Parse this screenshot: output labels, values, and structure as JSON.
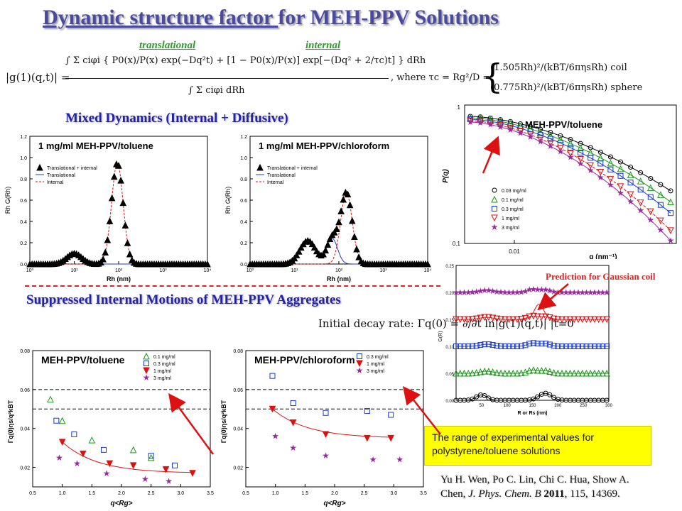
{
  "title": {
    "part1": "Dynamic structure factor ",
    "part2": "for MEH-PPV Solutions"
  },
  "equation": {
    "translational_label": "translational",
    "internal_label": "internal",
    "lhs": "|g(1)(q,t)| =",
    "numerator": "∫ Σ ciφi { P0(x)/P(x) exp(−Dq²t) + [1 − P0(x)/P(x)] exp[−(Dq² + 2/τc)t] } dRh",
    "denominator": "∫ Σ ciφi dRh",
    "where": ", where τc = Rg²/D =",
    "case_coil": "(1.505Rh)²/(kBT/6πηsRh)   coil",
    "case_sphere": "(0.775Rh)²/(kBT/6πηsRh)   sphere"
  },
  "section1": "Mixed Dynamics (Internal + Diffusive)",
  "section2": "Suppressed Internal Motions of MEH-PPV Aggregates",
  "decay_equation": "Initial decay rate: Γq(0) = ∂/∂t ln|g(1)(q,t)| |t=0",
  "callout": "The range of experimental values for polystyrene/toluene solutions",
  "prediction_label": "Prediction for Gaussian coil",
  "citation": {
    "line1": "Yu H. Wen, Po C. Lin, Chi C. Hua, Show A.",
    "line2_a": "Chen, ",
    "line2_journal": "J. Phys. Chem. B",
    "line2_year": " 2011",
    "line2_b": ", 115, 14369."
  },
  "colors": {
    "black": "#000000",
    "green": "#1a9a1a",
    "blue": "#1a3ad0",
    "red": "#dd1111",
    "purple": "#9a2aa0"
  },
  "chart_data": [
    {
      "id": "dist-toluene",
      "type": "line",
      "title": "1 mg/ml MEH-PPV/toluene",
      "xlabel": "Rh (nm)",
      "ylabel": "Rh G(Rh)",
      "xscale": "log",
      "xlim": [
        1,
        10000
      ],
      "ylim": [
        0,
        1.2
      ],
      "xticks": [
        1,
        10,
        100,
        1000,
        10000
      ],
      "xtick_labels": [
        "10⁰",
        "10¹",
        "10²",
        "10³",
        "10⁴"
      ],
      "yticks": [
        0,
        0.2,
        0.4,
        0.6,
        0.8,
        1.0,
        1.2
      ],
      "ytick_labels": [
        "0.0",
        "0.2",
        "0.4",
        "0.6",
        "0.8",
        "1.0",
        "1.2"
      ],
      "legend": [
        "Translational + internal",
        "Translational",
        "Internal"
      ],
      "series": [
        {
          "name": "Translational + internal",
          "style": "triangles",
          "x": [
            1,
            1.5,
            2,
            3,
            4,
            5,
            6,
            7,
            8,
            10,
            12,
            14,
            16,
            18,
            20,
            25,
            30,
            35,
            40,
            45,
            50,
            55,
            60,
            65,
            70,
            75,
            80,
            85,
            90,
            100,
            110,
            120,
            130,
            140,
            150,
            160,
            170,
            180,
            190,
            200,
            220,
            240,
            260,
            280,
            300,
            350,
            400,
            500,
            700,
            1000,
            2000,
            5000,
            10000
          ],
          "y": [
            0,
            0,
            0,
            0,
            0,
            0,
            0.01,
            0.02,
            0.03,
            0.05,
            0.07,
            0.09,
            0.1,
            0.11,
            0.1,
            0.08,
            0.07,
            0.06,
            0.08,
            0.12,
            0.19,
            0.28,
            0.4,
            0.55,
            0.68,
            0.8,
            0.9,
            0.95,
            0.95,
            0.9,
            0.8,
            0.65,
            0.5,
            0.36,
            0.24,
            0.15,
            0.08,
            0.04,
            0.02,
            0.01,
            0,
            0,
            0,
            0,
            0,
            0,
            0,
            0,
            0,
            0,
            0,
            0,
            0
          ]
        },
        {
          "name": "Translational",
          "style": "line",
          "x": [
            5,
            10,
            15,
            20,
            25,
            30,
            35,
            40
          ],
          "y": [
            0,
            0,
            0,
            0,
            0,
            0,
            0,
            0
          ]
        },
        {
          "name": "Internal",
          "style": "dashed",
          "x": [
            10,
            20,
            30,
            40,
            50,
            60,
            70,
            80,
            90,
            100,
            120,
            140,
            160,
            180,
            200,
            250
          ],
          "y": [
            0,
            0.01,
            0.03,
            0.08,
            0.18,
            0.38,
            0.62,
            0.84,
            0.94,
            0.92,
            0.68,
            0.37,
            0.16,
            0.06,
            0.02,
            0
          ]
        }
      ]
    },
    {
      "id": "dist-chloroform",
      "type": "line",
      "title": "1 mg/ml MEH-PPV/chloroform",
      "xlabel": "Rh (nm)",
      "ylabel": "Rh G(Rh)",
      "xscale": "log",
      "xlim": [
        1,
        10000
      ],
      "ylim": [
        0,
        1.2
      ],
      "xtick_labels": [
        "10⁰",
        "10¹",
        "10²",
        "10³",
        "10⁴"
      ],
      "ytick_labels": [
        "0.0",
        "0.2",
        "0.4",
        "0.6",
        "0.8",
        "1.0",
        "1.2"
      ],
      "legend": [
        "Translational + internal",
        "Translational",
        "Internal"
      ]
    },
    {
      "id": "pq",
      "type": "scatter",
      "title": "MEH-PPV/toluene",
      "xlabel": "q (nm⁻¹)",
      "ylabel": "P(q)",
      "xscale": "log",
      "yscale": "log",
      "xtick_labels": [
        "0.01"
      ],
      "ytick_labels": [
        "1",
        "0.1"
      ],
      "legend": [
        "0.03 mg/ml",
        "0.1 mg/ml",
        "0.3 mg/ml",
        "1 mg/ml",
        "3 mg/ml"
      ]
    },
    {
      "id": "gr",
      "type": "line",
      "xlabel": "R or Rs (nm)",
      "ylabel": "G(R)",
      "xlim": [
        0,
        300
      ],
      "ylim": [
        0,
        0.25
      ],
      "xtick_labels": [
        "50",
        "100",
        "150",
        "200",
        "250",
        "300"
      ],
      "ytick_labels": [
        "0.00",
        "0.05",
        "0.10",
        "0.15",
        "0.20",
        "0.25"
      ]
    },
    {
      "id": "gamma-toluene",
      "type": "scatter",
      "title": "MEH-PPV/toluene",
      "xlabel": "q<Rg>",
      "ylabel": "Γq(0)ηs/q²kBT",
      "xlim": [
        0.5,
        3.5
      ],
      "ylim": [
        0.01,
        0.08
      ],
      "xtick_labels": [
        "0.5",
        "1.0",
        "1.5",
        "2.0",
        "2.5",
        "3.0",
        "3.5"
      ],
      "ytick_labels": [
        "0.02",
        "0.04",
        "0.06",
        "0.08"
      ],
      "legend": [
        "0.1 mg/ml",
        "0.3 mg/ml",
        "1 mg/ml",
        "3 mg/ml"
      ],
      "series": [
        {
          "name": "0.1 mg/ml",
          "x": [
            0.8,
            1.0,
            1.5,
            2.2,
            2.5
          ],
          "y": [
            0.055,
            0.044,
            0.034,
            0.029,
            0.025
          ]
        },
        {
          "name": "0.3 mg/ml",
          "x": [
            0.9,
            1.2,
            1.7,
            2.5,
            2.9
          ],
          "y": [
            0.044,
            0.037,
            0.029,
            0.026,
            0.021
          ]
        },
        {
          "name": "1 mg/ml",
          "x": [
            1.0,
            1.35,
            1.8,
            2.2,
            2.75,
            3.2
          ],
          "y": [
            0.033,
            0.027,
            0.022,
            0.021,
            0.019,
            0.017
          ]
        },
        {
          "name": "3 mg/ml",
          "x": [
            0.95,
            1.25,
            1.75,
            2.4,
            2.8
          ],
          "y": [
            0.025,
            0.022,
            0.017,
            0.014,
            0.013
          ]
        }
      ]
    },
    {
      "id": "gamma-chloroform",
      "type": "scatter",
      "title": "MEH-PPV/chloroform",
      "xlabel": "q<Rg>",
      "ylabel": "Γq(0)ηs/q²kBT",
      "xlim": [
        0.5,
        3.5
      ],
      "ylim": [
        0.01,
        0.08
      ],
      "xtick_labels": [
        "0.5",
        "1.0",
        "1.5",
        "2.0",
        "2.5",
        "3.0",
        "3.5"
      ],
      "ytick_labels": [
        "0.02",
        "0.04",
        "0.06",
        "0.08"
      ],
      "legend": [
        "0.3 mg/ml",
        "1 mg/ml",
        "3 mg/ml"
      ],
      "series": [
        {
          "name": "0.3 mg/ml",
          "x": [
            0.95,
            1.3,
            1.85,
            2.55,
            2.95
          ],
          "y": [
            0.067,
            0.053,
            0.048,
            0.049,
            0.047
          ]
        },
        {
          "name": "1 mg/ml",
          "x": [
            0.95,
            1.3,
            1.85,
            2.55,
            2.95
          ],
          "y": [
            0.05,
            0.043,
            0.037,
            0.035,
            0.035
          ]
        },
        {
          "name": "3 mg/ml",
          "x": [
            1.0,
            1.3,
            1.85,
            2.65,
            3.1
          ],
          "y": [
            0.036,
            0.03,
            0.026,
            0.024,
            0.024
          ]
        }
      ]
    }
  ]
}
